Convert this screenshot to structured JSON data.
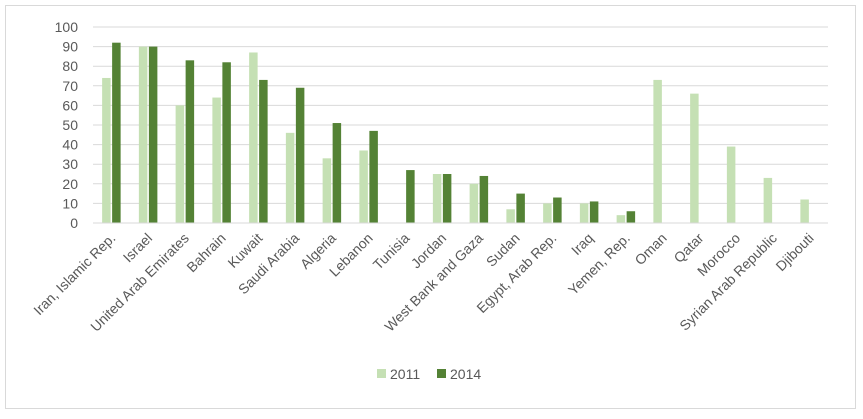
{
  "chart_data": {
    "type": "bar",
    "title": "",
    "xlabel": "",
    "ylabel": "",
    "ylim": [
      0,
      100
    ],
    "yticks": [
      0,
      10,
      20,
      30,
      40,
      50,
      60,
      70,
      80,
      90,
      100
    ],
    "grid": true,
    "legend_position": "bottom-center",
    "categories": [
      "Iran, Islamic Rep.",
      "Israel",
      "United Arab Emirates",
      "Bahrain",
      "Kuwait",
      "Saudi Arabia",
      "Algeria",
      "Lebanon",
      "Tunisia",
      "Jordan",
      "West Bank and Gaza",
      "Sudan",
      "Egypt, Arab Rep.",
      "Iraq",
      "Yemen, Rep.",
      "Oman",
      "Qatar",
      "Morocco",
      "Syrian Arab Republic",
      "Djibouti"
    ],
    "series": [
      {
        "name": "2011",
        "color": "#c5e0b4",
        "values": [
          74,
          90,
          60,
          64,
          87,
          46,
          33,
          37,
          null,
          25,
          20,
          7,
          10,
          10,
          4,
          73,
          66,
          39,
          23,
          12
        ]
      },
      {
        "name": "2014",
        "color": "#548235",
        "values": [
          92,
          90,
          83,
          82,
          73,
          69,
          51,
          47,
          27,
          25,
          24,
          15,
          13,
          11,
          6,
          null,
          null,
          null,
          null,
          null
        ]
      }
    ]
  }
}
